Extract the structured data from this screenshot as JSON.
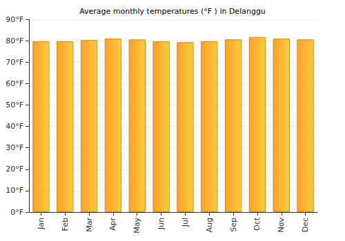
{
  "chart_data": {
    "type": "bar",
    "title": "Average monthly temperatures (°F ) in Delanggu",
    "categories": [
      "Jan",
      "Feb",
      "Mar",
      "Apr",
      "May",
      "Jun",
      "Jul",
      "Aug",
      "Sep",
      "Oct",
      "Nov",
      "Dec"
    ],
    "values": [
      79.7,
      79.7,
      80.3,
      81.0,
      80.6,
      79.7,
      79.3,
      79.7,
      80.6,
      81.7,
      81.0,
      80.6
    ],
    "color": "#f9a12b",
    "ylim": [
      0,
      90
    ],
    "yticks": [
      {
        "value": 0,
        "label": "0°F"
      },
      {
        "value": 10,
        "label": "10°F"
      },
      {
        "value": 20,
        "label": "20°F"
      },
      {
        "value": 30,
        "label": "30°F"
      },
      {
        "value": 40,
        "label": "40°F"
      },
      {
        "value": 50,
        "label": "50°F"
      },
      {
        "value": 60,
        "label": "60°F"
      },
      {
        "value": 70,
        "label": "70°F"
      },
      {
        "value": 80,
        "label": "80°F"
      },
      {
        "value": 90,
        "label": "90°F"
      }
    ],
    "grid": true
  }
}
